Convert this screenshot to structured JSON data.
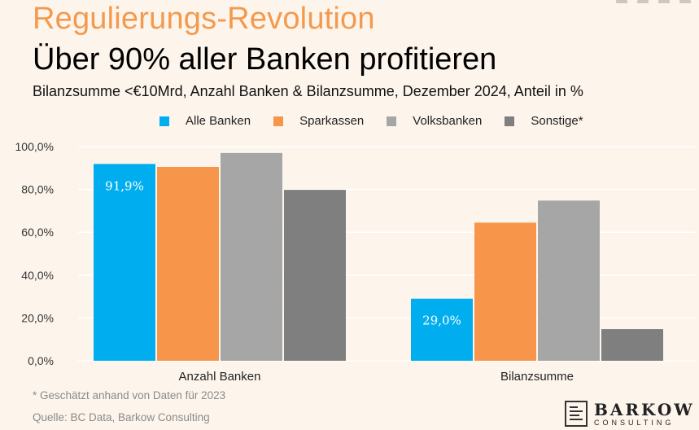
{
  "header": {
    "kicker": "Regulierungs-Revolution",
    "title": "Über 90% aller Banken profitieren",
    "subtitle": "Bilanzsumme <€10Mrd, Anzahl Banken & Bilanzsumme, Dezember 2024, Anteil in %"
  },
  "colors": {
    "background": "#fdf5ec",
    "accent": "#f39a4e"
  },
  "chart_data": {
    "type": "bar",
    "categories": [
      "Anzahl Banken",
      "Bilanzsumme"
    ],
    "series": [
      {
        "name": "Alle Banken",
        "color": "#00aeef",
        "values": [
          91.9,
          29.0
        ],
        "labels": [
          "91,9%",
          "29,0%"
        ]
      },
      {
        "name": "Sparkassen",
        "color": "#f7964a",
        "values": [
          90.5,
          64.5
        ],
        "labels": [
          "",
          ""
        ]
      },
      {
        "name": "Volksbanken",
        "color": "#a6a6a6",
        "values": [
          97.0,
          74.8
        ],
        "labels": [
          "",
          ""
        ]
      },
      {
        "name": "Sonstige*",
        "color": "#7f7f7f",
        "values": [
          79.8,
          14.8
        ],
        "labels": [
          "",
          ""
        ]
      }
    ],
    "ylim": [
      0,
      100
    ],
    "yticks": [
      0,
      20,
      40,
      60,
      80,
      100
    ],
    "ytick_labels": [
      "0,0%",
      "20,0%",
      "40,0%",
      "60,0%",
      "80,0%",
      "100,0%"
    ],
    "grid": true,
    "legend_position": "top"
  },
  "footer": {
    "footnote": "* Geschätzt anhand von Daten für 2023",
    "source": "Quelle: BC Data, Barkow Consulting",
    "logo_name": "BARKOW",
    "logo_sub": "CONSULTING"
  }
}
